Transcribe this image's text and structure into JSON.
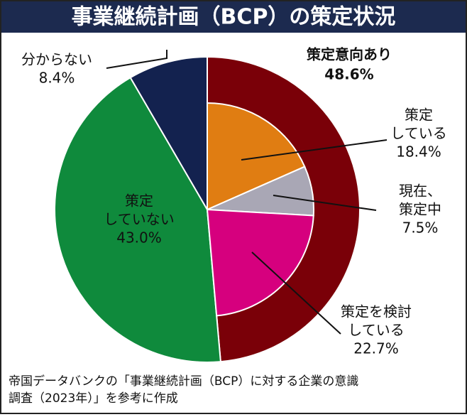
{
  "chart_data": {
    "type": "pie",
    "title": "事業継続計画（BCP）の策定状況",
    "source": [
      "帝国データバンクの「事業継続計画（BCP）に対する企業の意識",
      "調査（2023年）」を参考に作成"
    ],
    "outer": {
      "categories": [
        [
          "策定意向あり"
        ],
        [
          "策定",
          "していない"
        ],
        [
          "分からない"
        ]
      ],
      "values": [
        48.6,
        43.0,
        8.4
      ],
      "value_labels": [
        "48.6%",
        "43.0%",
        "8.4%"
      ],
      "colors": [
        "#7a0008",
        "#0f8a3c",
        "#13224f"
      ]
    },
    "inner": {
      "categories": [
        [
          "策定",
          "している"
        ],
        [
          "現在、",
          "策定中"
        ],
        [
          "策定を検討",
          "している"
        ]
      ],
      "values": [
        18.4,
        7.5,
        22.7
      ],
      "value_labels": [
        "18.4%",
        "7.5%",
        "22.7%"
      ],
      "colors": [
        "#e07d12",
        "#a9a7b5",
        "#d6007e"
      ]
    }
  }
}
